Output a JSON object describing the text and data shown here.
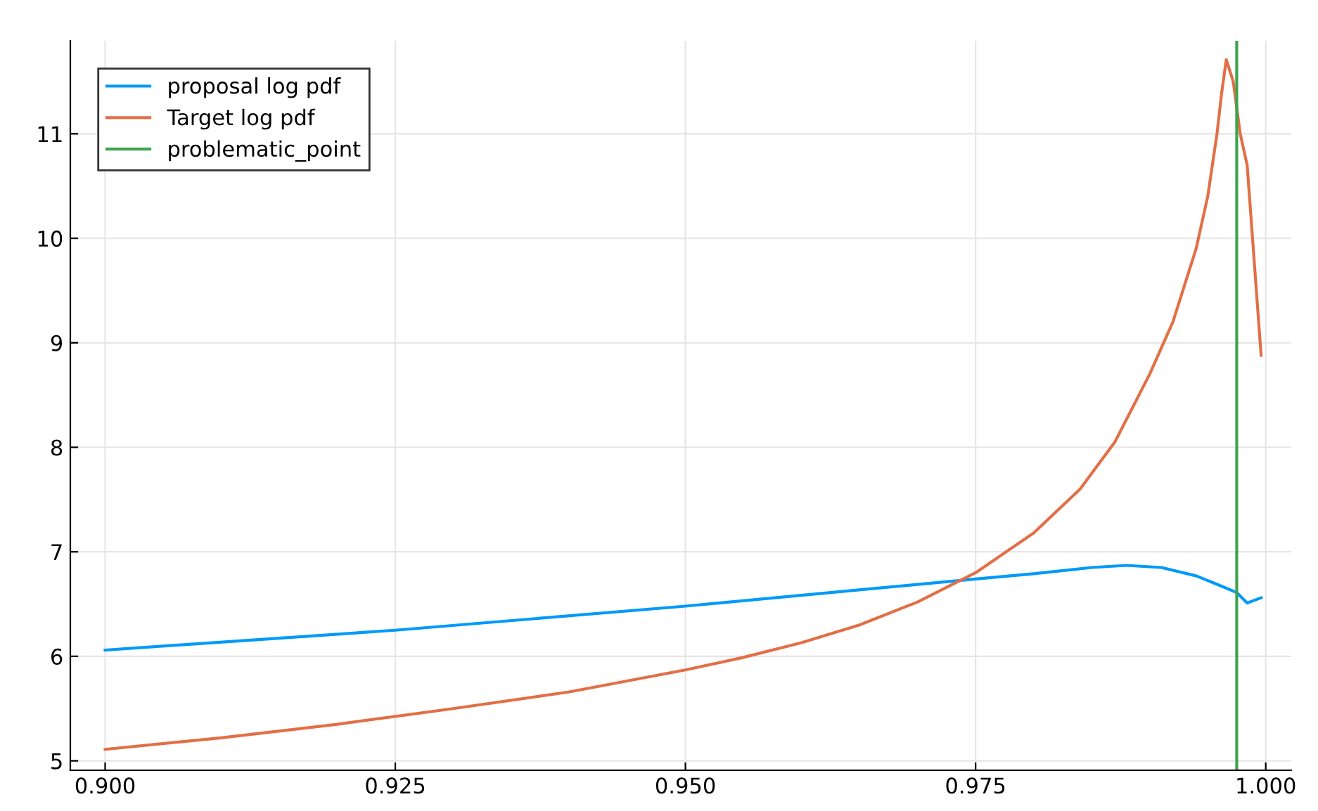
{
  "chart_data": {
    "type": "line",
    "xlim": [
      0.897,
      1.0022
    ],
    "ylim": [
      4.91,
      11.89
    ],
    "xticks": [
      {
        "value": 0.9,
        "label": "0.900"
      },
      {
        "value": 0.925,
        "label": "0.925"
      },
      {
        "value": 0.95,
        "label": "0.950"
      },
      {
        "value": 0.975,
        "label": "0.975"
      },
      {
        "value": 1.0,
        "label": "1.000"
      }
    ],
    "yticks": [
      5,
      6,
      7,
      8,
      9,
      10,
      11
    ],
    "grid": true,
    "legend": "top left",
    "line_style": "solid",
    "marker": "none",
    "series": [
      {
        "name": "proposal log pdf",
        "color": "#009af9",
        "x": [
          0.9,
          0.925,
          0.95,
          0.975,
          0.98,
          0.985,
          0.988,
          0.991,
          0.994,
          0.996,
          0.9975,
          0.9984,
          0.9996
        ],
        "values": [
          6.06,
          6.25,
          6.48,
          6.74,
          6.79,
          6.85,
          6.87,
          6.85,
          6.77,
          6.68,
          6.61,
          6.51,
          6.56
        ]
      },
      {
        "name": "Target log pdf",
        "color": "#e26f46",
        "x": [
          0.9,
          0.91,
          0.92,
          0.93,
          0.94,
          0.95,
          0.955,
          0.96,
          0.965,
          0.97,
          0.975,
          0.98,
          0.984,
          0.987,
          0.99,
          0.992,
          0.994,
          0.995,
          0.9958,
          0.9962,
          0.9966,
          0.9972,
          0.9978,
          0.9984,
          0.9996
        ],
        "values": [
          5.11,
          5.22,
          5.35,
          5.5,
          5.66,
          5.87,
          5.99,
          6.13,
          6.3,
          6.52,
          6.8,
          7.18,
          7.6,
          8.05,
          8.7,
          9.2,
          9.9,
          10.4,
          11.0,
          11.39,
          11.71,
          11.5,
          11.0,
          10.7,
          8.88
        ]
      },
      {
        "name": "problematic_point",
        "color": "#3da44d",
        "x": [
          0.9975,
          0.9975
        ],
        "values": [
          4.91,
          11.89
        ]
      }
    ]
  }
}
